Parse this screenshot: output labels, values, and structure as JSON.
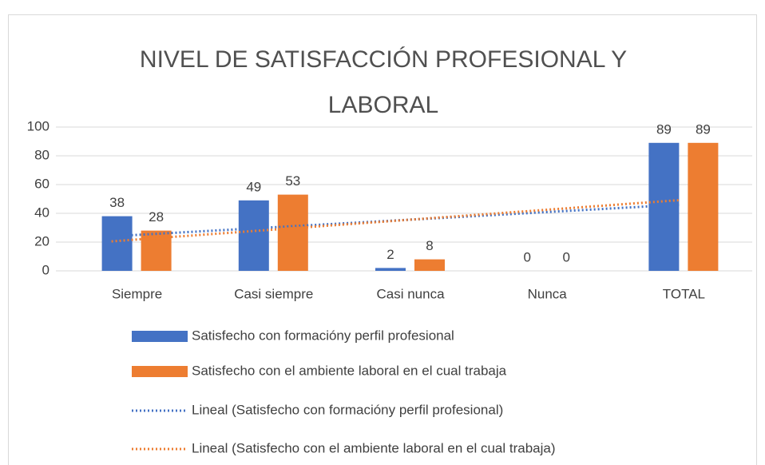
{
  "chart_data": {
    "type": "bar",
    "title_lines": [
      "NIVEL DE SATISFACCIÓN PROFESIONAL Y",
      "LABORAL"
    ],
    "categories": [
      "Siempre",
      "Casi siempre",
      "Casi nunca",
      "Nunca",
      "TOTAL"
    ],
    "series": [
      {
        "name": "Satisfecho con formacióny perfil profesional",
        "color": "#4472c4",
        "values": [
          38,
          49,
          2,
          0,
          89
        ]
      },
      {
        "name": "Satisfecho con el ambiente laboral en el cual trabaja",
        "color": "#ed7d31",
        "values": [
          28,
          53,
          8,
          0,
          89
        ]
      }
    ],
    "trendlines": [
      {
        "name": "Lineal (Satisfecho con formacióny perfil profesional)",
        "series": 0,
        "color": "#4472c4"
      },
      {
        "name": "Lineal (Satisfecho con el ambiente laboral en el cual trabaja)",
        "series": 1,
        "color": "#ed7d31"
      }
    ],
    "ylim": [
      0,
      100
    ],
    "yticks": [
      0,
      20,
      40,
      60,
      80,
      100
    ],
    "grid": true,
    "legend": "bottom"
  }
}
